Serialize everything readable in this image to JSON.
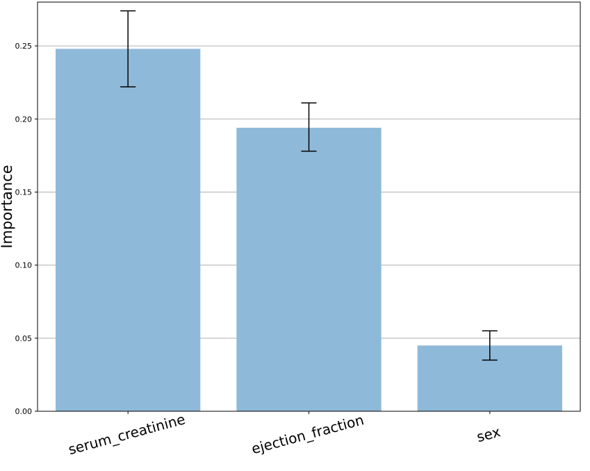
{
  "chart_data": {
    "type": "bar",
    "categories": [
      "serum_creatinine",
      "ejection_fraction",
      "sex"
    ],
    "values": [
      0.248,
      0.194,
      0.045
    ],
    "error_low": [
      0.222,
      0.178,
      0.035
    ],
    "error_high": [
      0.274,
      0.211,
      0.055
    ],
    "title": "",
    "xlabel": "",
    "ylabel": "Importance",
    "ylim": [
      0,
      0.28
    ],
    "yticks": [
      0.0,
      0.05,
      0.1,
      0.15,
      0.2,
      0.25
    ],
    "ytick_labels": [
      "0.00",
      "0.05",
      "0.10",
      "0.15",
      "0.20",
      "0.25"
    ],
    "grid": "horizontal",
    "bar_color": "#8fb9d9",
    "error_color": "#000000",
    "grid_color": "#b0b0b0"
  }
}
